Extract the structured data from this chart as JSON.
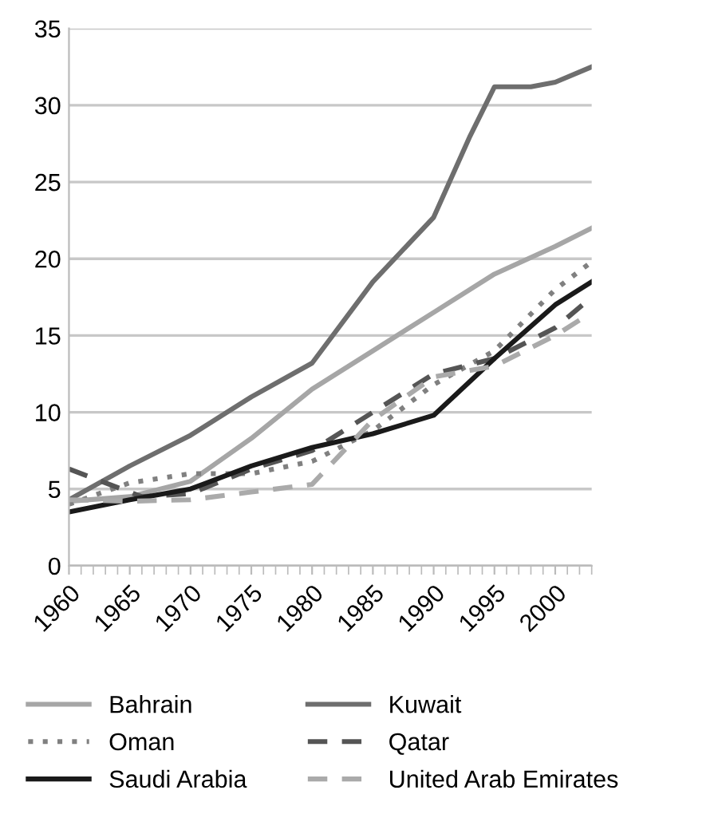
{
  "chart_data": {
    "type": "line",
    "x": [
      1960,
      1965,
      1970,
      1975,
      1980,
      1985,
      1990,
      1995,
      2000,
      2003
    ],
    "xlim": [
      1960,
      2003
    ],
    "xticks": [
      1960,
      1965,
      1970,
      1975,
      1980,
      1985,
      1990,
      1995,
      2000
    ],
    "ylim": [
      0,
      35
    ],
    "yticks": [
      0,
      5,
      10,
      15,
      20,
      25,
      30,
      35
    ],
    "grid": "y",
    "legend": "bottom",
    "marker": "none",
    "series": [
      {
        "name": "Bahrain",
        "color": "#a6a6a6",
        "line_style": "solid",
        "values": [
          4.2,
          4.5,
          5.5,
          8.3,
          11.5,
          14,
          16.5,
          19,
          20.8,
          22
        ]
      },
      {
        "name": "Kuwait",
        "color": "#6e6e6e",
        "line_style": "solid",
        "x": [
          1960,
          1965,
          1970,
          1975,
          1980,
          1985,
          1990,
          1993,
          1995,
          1998,
          2000,
          2003
        ],
        "values": [
          4.3,
          6.5,
          8.5,
          11,
          13.2,
          18.5,
          22.7,
          28,
          31.2,
          31.2,
          31.5,
          32.5
        ]
      },
      {
        "name": "Oman",
        "color": "#808080",
        "line_style": "dotted",
        "values": [
          4.0,
          5.4,
          6.0,
          6.0,
          6.8,
          8.8,
          11.8,
          14,
          18,
          19.8
        ]
      },
      {
        "name": "Qatar",
        "color": "#555555",
        "line_style": "dashed",
        "x": [
          1960,
          1966,
          1970,
          1975,
          1980,
          1985,
          1990,
          1995,
          2000,
          2003
        ],
        "values": [
          6.3,
          4.5,
          4.7,
          6.3,
          7.5,
          10,
          12.5,
          13.5,
          15.5,
          17.5
        ]
      },
      {
        "name": "Saudi Arabia",
        "color": "#1a1a1a",
        "line_style": "solid",
        "values": [
          3.5,
          4.3,
          5.0,
          6.5,
          7.7,
          8.6,
          9.8,
          13.5,
          17,
          18.5
        ]
      },
      {
        "name": "United Arab Emirates",
        "color": "#aaaaaa",
        "line_style": "dashed",
        "values": [
          4.3,
          4.2,
          4.3,
          4.8,
          5.3,
          9.5,
          12.3,
          13,
          15,
          16.5
        ]
      }
    ]
  }
}
